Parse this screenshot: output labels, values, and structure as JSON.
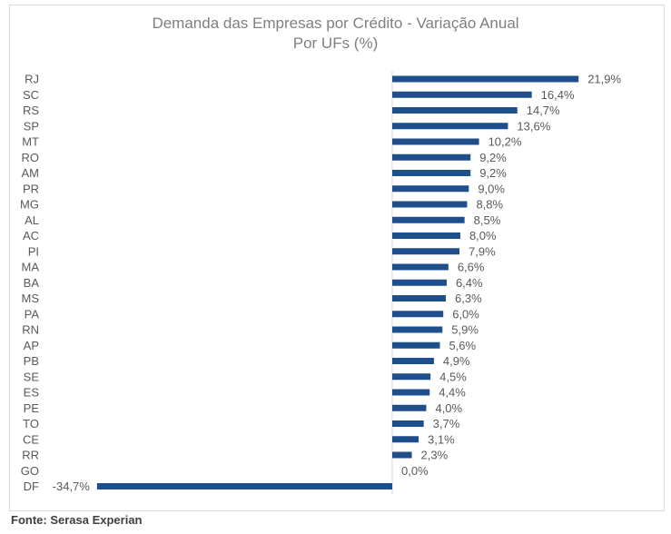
{
  "chart_data": {
    "type": "bar",
    "orientation": "horizontal",
    "title": "Demanda das Empresas por Crédito - Variação Anual",
    "subtitle": "Por UFs (%)",
    "categories": [
      "RJ",
      "SC",
      "RS",
      "SP",
      "MT",
      "RO",
      "AM",
      "PR",
      "MG",
      "AL",
      "AC",
      "PI",
      "MA",
      "BA",
      "MS",
      "PA",
      "RN",
      "AP",
      "PB",
      "SE",
      "ES",
      "PE",
      "TO",
      "CE",
      "RR",
      "GO",
      "DF"
    ],
    "values": [
      21.9,
      16.4,
      14.7,
      13.6,
      10.2,
      9.2,
      9.2,
      9.0,
      8.8,
      8.5,
      8.0,
      7.9,
      6.6,
      6.4,
      6.3,
      6.0,
      5.9,
      5.6,
      4.9,
      4.5,
      4.4,
      4.0,
      3.7,
      3.1,
      2.3,
      0.0,
      -34.7
    ],
    "labels": [
      "21,9%",
      "16,4%",
      "14,7%",
      "13,6%",
      "10,2%",
      "9,2%",
      "9,2%",
      "9,0%",
      "8,8%",
      "8,5%",
      "8,0%",
      "7,9%",
      "6,6%",
      "6,4%",
      "6,3%",
      "6,0%",
      "5,9%",
      "5,6%",
      "4,9%",
      "4,5%",
      "4,4%",
      "4,0%",
      "3,7%",
      "3,1%",
      "2,3%",
      "0,0%",
      "-34,7%"
    ],
    "bar_color": "#1f4e8c",
    "grid": false,
    "legend": "none"
  },
  "source": "Fonte: Serasa Experian"
}
